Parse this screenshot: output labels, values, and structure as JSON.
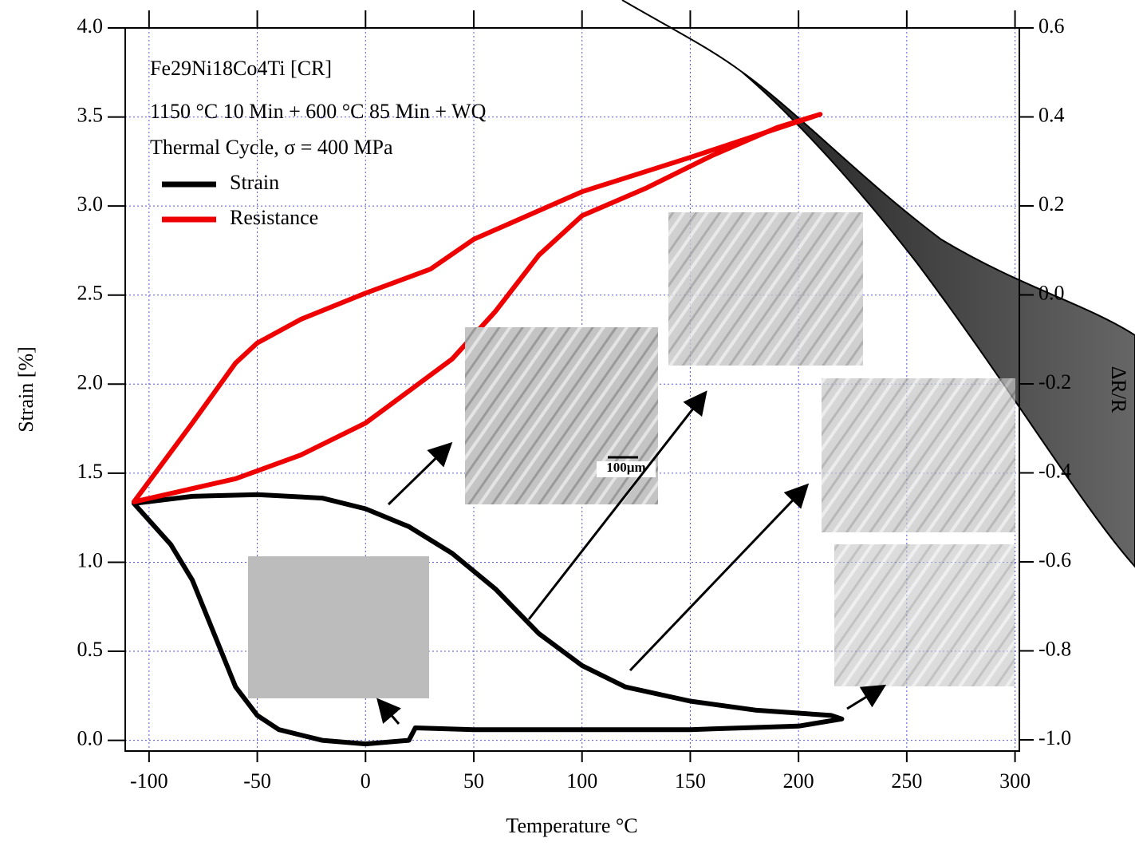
{
  "chart_data": {
    "type": "line",
    "annotations": [
      "Fe29Ni18Co4Ti [CR]",
      "1150 °C 10 Min + 600 °C  85 Min + WQ",
      "Thermal Cycle, σ = 400 MPa"
    ],
    "xlabel": "Temperature °C",
    "ylabel": "Strain [%]",
    "y2label": "ΔR/R",
    "scale_bar_label": "100µm",
    "xlim": [
      -111,
      302
    ],
    "xticks": [
      -100,
      -50,
      0,
      50,
      100,
      150,
      200,
      250,
      300
    ],
    "ylim": [
      -0.06,
      4.0
    ],
    "yticks": [
      {
        "value": 0,
        "label": "0.0"
      },
      0.5,
      {
        "value": 1,
        "label": "1.0"
      },
      1.5,
      {
        "value": 2,
        "label": "2.0"
      },
      2.5,
      {
        "value": 3,
        "label": "3.0"
      },
      3.5,
      {
        "value": 4,
        "label": "4.0"
      }
    ],
    "y2lim": [
      -1.025,
      0.6
    ],
    "y2ticks": [
      {
        "value": -1,
        "label": "-1.0"
      },
      -0.8,
      -0.6,
      -0.4,
      -0.2,
      {
        "value": 0,
        "label": "0.0"
      },
      0.2,
      0.4,
      0.6
    ],
    "grid": true,
    "legend": "upper left",
    "series": [
      {
        "name": "Strain",
        "color": "#000000",
        "x": [
          -107,
          -90,
          -80,
          -70,
          -60,
          -50,
          -40,
          -20,
          0,
          20,
          23,
          50,
          100,
          150,
          200,
          220,
          215,
          180,
          150,
          120,
          100,
          80,
          60,
          40,
          20,
          0,
          -20,
          -50,
          -80,
          -107
        ],
        "values": [
          1.33,
          1.1,
          0.9,
          0.6,
          0.3,
          0.14,
          0.06,
          0.0,
          -0.02,
          0.0,
          0.07,
          0.06,
          0.06,
          0.06,
          0.08,
          0.12,
          0.14,
          0.17,
          0.22,
          0.3,
          0.42,
          0.6,
          0.85,
          1.05,
          1.2,
          1.3,
          1.36,
          1.38,
          1.37,
          1.33
        ]
      },
      {
        "name": "Resistance",
        "color": "#ee0000",
        "axis": "y2",
        "x": [
          -107,
          -80,
          -60,
          -50,
          -30,
          0,
          30,
          50,
          100,
          150,
          210,
          190,
          160,
          130,
          100,
          80,
          60,
          40,
          20,
          0,
          -30,
          -60,
          -107
        ],
        "values": [
          -0.465,
          -0.288,
          -0.153,
          -0.108,
          -0.055,
          0.004,
          0.058,
          0.125,
          0.232,
          0.309,
          0.406,
          0.376,
          0.313,
          0.241,
          0.178,
          0.089,
          -0.037,
          -0.144,
          -0.216,
          -0.288,
          -0.36,
          -0.413,
          -0.465
        ]
      }
    ]
  }
}
